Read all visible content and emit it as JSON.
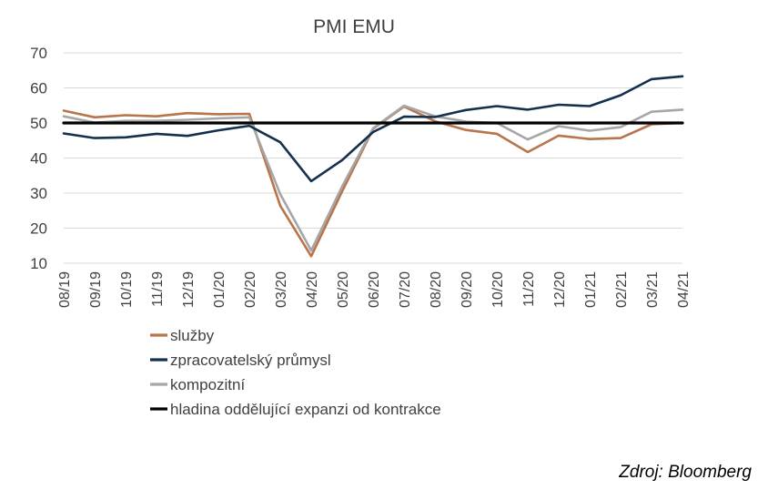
{
  "chart_data": {
    "type": "line",
    "title": "PMI EMU",
    "xlabel": "",
    "ylabel": "",
    "ylim": [
      10,
      70
    ],
    "yticks": [
      "10",
      "20",
      "30",
      "40",
      "50",
      "60",
      "70"
    ],
    "grid": true,
    "legend_position": "bottom-left",
    "x": [
      "08/19",
      "09/19",
      "10/19",
      "11/19",
      "12/19",
      "01/20",
      "02/20",
      "03/20",
      "04/20",
      "05/20",
      "06/20",
      "07/20",
      "08/20",
      "09/20",
      "10/20",
      "11/20",
      "12/20",
      "01/21",
      "02/21",
      "03/21",
      "04/21"
    ],
    "series": [
      {
        "name": "služby",
        "color": "#b8744a",
        "values": [
          53.5,
          51.6,
          52.2,
          51.9,
          52.8,
          52.5,
          52.6,
          26.4,
          12.0,
          30.5,
          48.3,
          54.7,
          50.5,
          48.0,
          46.9,
          41.7,
          46.4,
          45.4,
          45.7,
          49.6,
          50.0
        ]
      },
      {
        "name": "zpracovatelský průmysl",
        "color": "#13304f",
        "values": [
          47.0,
          45.7,
          45.9,
          46.9,
          46.3,
          47.9,
          49.2,
          44.5,
          33.4,
          39.4,
          47.4,
          51.8,
          51.7,
          53.7,
          54.8,
          53.8,
          55.2,
          54.8,
          57.9,
          62.5,
          63.3
        ]
      },
      {
        "name": "kompozitní",
        "color": "#a6a6a6",
        "values": [
          51.9,
          50.1,
          50.6,
          50.6,
          50.9,
          51.3,
          51.6,
          29.7,
          13.6,
          31.9,
          48.5,
          54.9,
          51.9,
          50.4,
          50.0,
          45.3,
          49.1,
          47.8,
          48.8,
          53.2,
          53.8
        ]
      },
      {
        "name": "hladina oddělující expanzi od kontrakce",
        "color": "#000000",
        "values": [
          50,
          50,
          50,
          50,
          50,
          50,
          50,
          50,
          50,
          50,
          50,
          50,
          50,
          50,
          50,
          50,
          50,
          50,
          50,
          50,
          50
        ]
      }
    ]
  },
  "source": "Zdroj: Bloomberg"
}
